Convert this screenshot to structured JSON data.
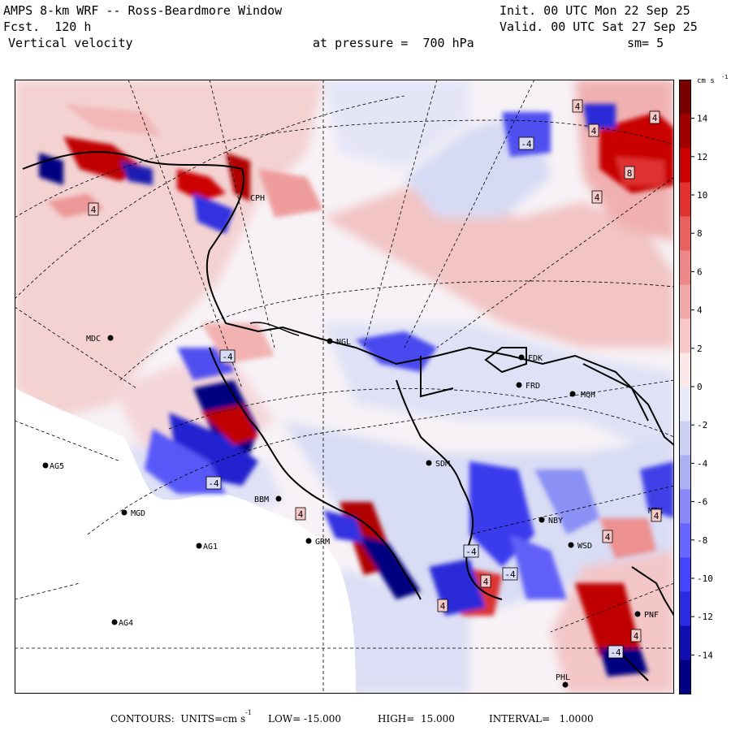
{
  "header": {
    "model": "AMPS 8-km WRF -- Ross-Beardmore Window",
    "forecast": "Fcst.  120 h",
    "variable": "Vertical velocity",
    "init": "Init. 00 UTC Mon 22 Sep 25",
    "valid": "Valid. 00 UTC Sat 27 Sep 25",
    "pressure": "at pressure =  700 hPa",
    "smooth": "sm= 5"
  },
  "colorbar": {
    "units": "cm s",
    "units_exp": "-1",
    "ticks": [
      "14",
      "12",
      "10",
      "8",
      "6",
      "4",
      "2",
      "0",
      "-2",
      "-4",
      "-6",
      "-8",
      "-10",
      "-12",
      "-14"
    ],
    "colors": [
      "#000080",
      "#1010b0",
      "#2a2ae0",
      "#4444ff",
      "#6666ff",
      "#8888f6",
      "#aab0f2",
      "#ccd0f4",
      "#e8eafa",
      "#fbe8e8",
      "#f6c8c8",
      "#f0a8a8",
      "#ec8888",
      "#e86060",
      "#e03030",
      "#cc0000",
      "#a00000",
      "#7a0000"
    ]
  },
  "stations": [
    {
      "code": "MDC",
      "marker": "dot"
    },
    {
      "code": "NGL",
      "marker": "dot"
    },
    {
      "code": "FDK",
      "marker": "dot"
    },
    {
      "code": "FRD",
      "marker": "dot"
    },
    {
      "code": "MQH",
      "marker": "dot"
    },
    {
      "code": "SDM",
      "marker": "dot"
    },
    {
      "code": "AG5",
      "marker": "dot"
    },
    {
      "code": "MGD",
      "marker": "dot"
    },
    {
      "code": "AG1",
      "marker": "dot"
    },
    {
      "code": "AG4",
      "marker": "dot"
    },
    {
      "code": "BBM",
      "marker": "dot"
    },
    {
      "code": "GRM",
      "marker": "dot"
    },
    {
      "code": "NBY",
      "marker": "dot"
    },
    {
      "code": "WSD",
      "marker": "dot"
    },
    {
      "code": "PNF",
      "marker": "dot"
    },
    {
      "code": "PHL",
      "marker": "dot"
    },
    {
      "code": "CPH",
      "marker": "none"
    },
    {
      "code": "MTK",
      "marker": "none"
    }
  ],
  "contour_labels": [
    "4",
    "4",
    "4",
    "8",
    "4",
    "-4",
    "-4",
    "-4",
    "4",
    "-4",
    "4",
    "-4",
    "4",
    "4",
    "4",
    "4",
    "-4",
    "4"
  ],
  "footer": {
    "contours": "CONTOURS:  UNITS=cm s",
    "units_exp": "-1",
    "low": "LOW= -15.000",
    "high": "HIGH=  15.000",
    "interval": "INTERVAL=   1.0000"
  }
}
